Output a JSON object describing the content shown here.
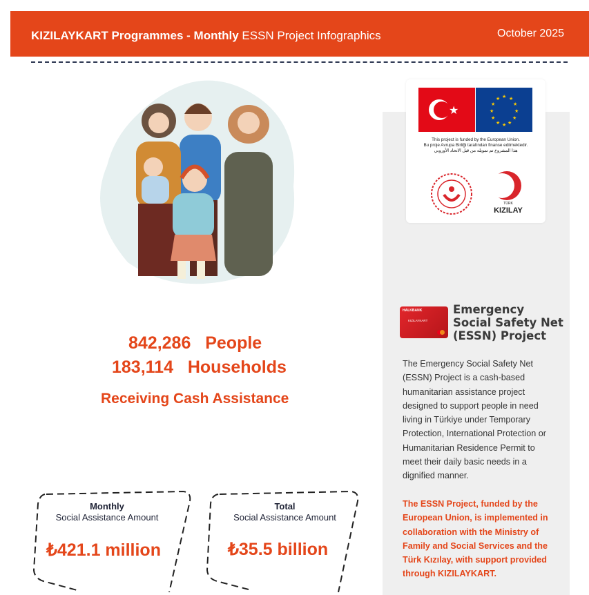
{
  "header": {
    "title_brand": "KIZILAYKART Programmes",
    "title_sep": " - ",
    "title_monthly": "Monthly",
    "title_rest": " ESSN Project Infographics",
    "date": "October 2025",
    "color": "#e4461a"
  },
  "stats": {
    "people_value": "842,286",
    "people_label": "People",
    "households_value": "183,114",
    "households_label": "Households",
    "receiving": "Receiving Cash Assistance"
  },
  "cards": [
    {
      "title": "Monthly",
      "subtitle": "Social Assistance Amount",
      "amount": "₺421.1",
      "unit": "million"
    },
    {
      "title": "Total",
      "subtitle": "Social Assistance Amount",
      "amount": "₺35.5",
      "unit": "billion"
    }
  ],
  "logos": {
    "eu_line1": "This project is funded by the European Union.",
    "eu_line2": "Bu proje Avrupa Birliği tarafından finanse edilmektedir.",
    "eu_line3": "هذا المشروع تم تمويله من قبل الاتحاد الأوروبي",
    "kizilay_top": "TÜRK",
    "kizilay_bottom": "KIZILAY"
  },
  "essn": {
    "title": "Emergency Social Safety Net (ESSN) Project",
    "card_bank": "HALKBANK",
    "card_name": "KIZILAYKART",
    "description": "The Emergency Social Safety Net (ESSN) Project is a cash-based humanitarian assistance project designed to support people in need living in Türkiye under Temporary Protection, International Protection or Humanitarian Residence Permit to meet their daily basic needs in a dignified manner.",
    "funding_note": "The ESSN Project, funded by the European Union, is implemented in collaboration with the Ministry of Family and Social Services and the Türk Kızılay, with support provided through KIZILAYKART."
  }
}
